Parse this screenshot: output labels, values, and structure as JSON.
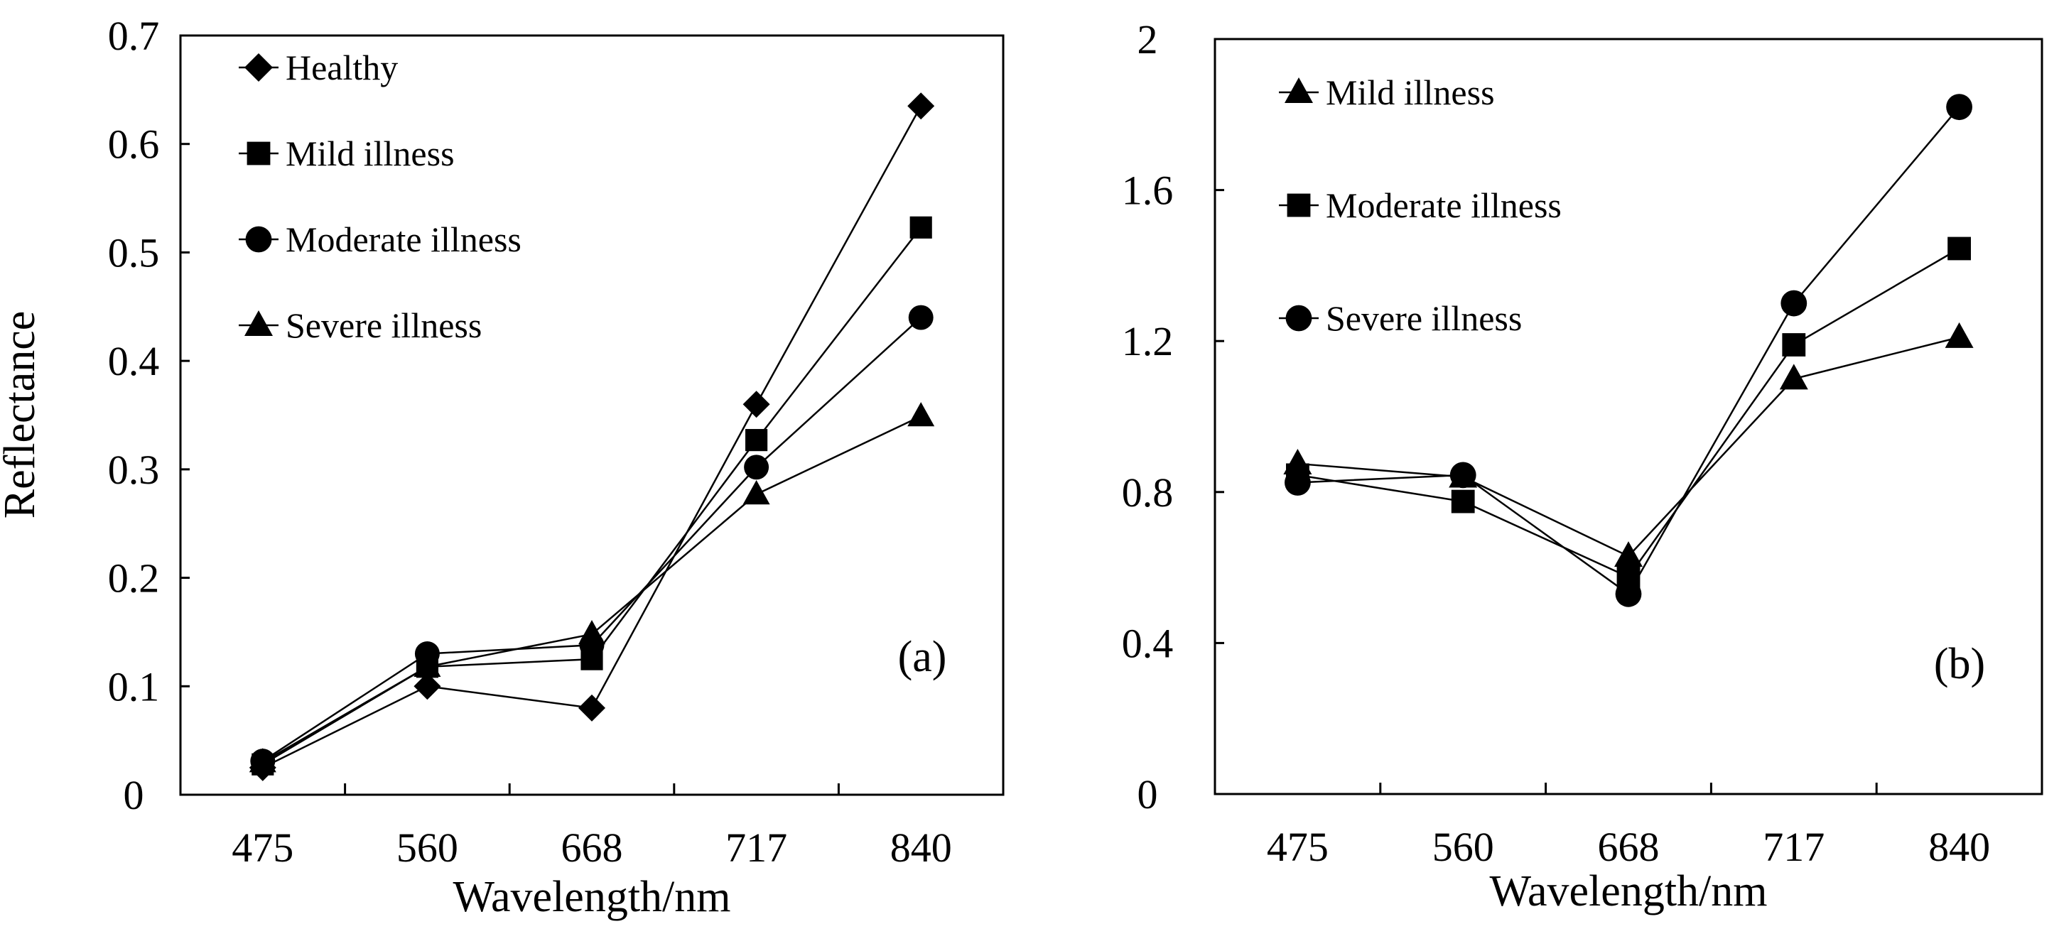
{
  "chart_data": [
    {
      "type": "line",
      "panel_label": "(a)",
      "xlabel": "Wavelength/nm",
      "ylabel": "Reflectance",
      "categories": [
        "475",
        "560",
        "668",
        "717",
        "840"
      ],
      "ylim": [
        0,
        0.7
      ],
      "yticks": [
        0,
        0.1,
        0.2,
        0.3,
        0.4,
        0.5,
        0.6,
        0.7
      ],
      "ytick_labels": [
        "0",
        "0.1",
        "0.2",
        "0.3",
        "0.4",
        "0.5",
        "0.6",
        "0.7"
      ],
      "grid": false,
      "legend_position": "top-left",
      "series": [
        {
          "name": "Healthy",
          "marker": "diamond",
          "values": [
            0.025,
            0.1,
            0.08,
            0.36,
            0.635
          ]
        },
        {
          "name": "Mild illness",
          "marker": "square",
          "values": [
            0.028,
            0.118,
            0.125,
            0.327,
            0.523
          ]
        },
        {
          "name": "Moderate illness",
          "marker": "circle",
          "values": [
            0.031,
            0.13,
            0.138,
            0.302,
            0.44
          ]
        },
        {
          "name": "Severe illness",
          "marker": "triangle",
          "values": [
            0.03,
            0.118,
            0.148,
            0.277,
            0.349
          ]
        }
      ]
    },
    {
      "type": "line",
      "panel_label": "(b)",
      "xlabel": "Wavelength/nm",
      "ylabel": "",
      "categories": [
        "475",
        "560",
        "668",
        "717",
        "840"
      ],
      "ylim": [
        0,
        2
      ],
      "yticks": [
        0,
        0.4,
        0.8,
        1.2,
        1.6,
        2
      ],
      "ytick_labels": [
        "0",
        "0.4",
        "0.8",
        "1.2",
        "1.6",
        "2"
      ],
      "grid": false,
      "legend_position": "top-left",
      "series": [
        {
          "name": "Mild illness",
          "marker": "triangle",
          "values": [
            0.875,
            0.84,
            0.63,
            1.1,
            1.21
          ]
        },
        {
          "name": "Moderate illness",
          "marker": "square",
          "values": [
            0.845,
            0.775,
            0.575,
            1.19,
            1.445
          ]
        },
        {
          "name": "Severe illness",
          "marker": "circle",
          "values": [
            0.825,
            0.845,
            0.53,
            1.3,
            1.82
          ]
        }
      ]
    }
  ]
}
